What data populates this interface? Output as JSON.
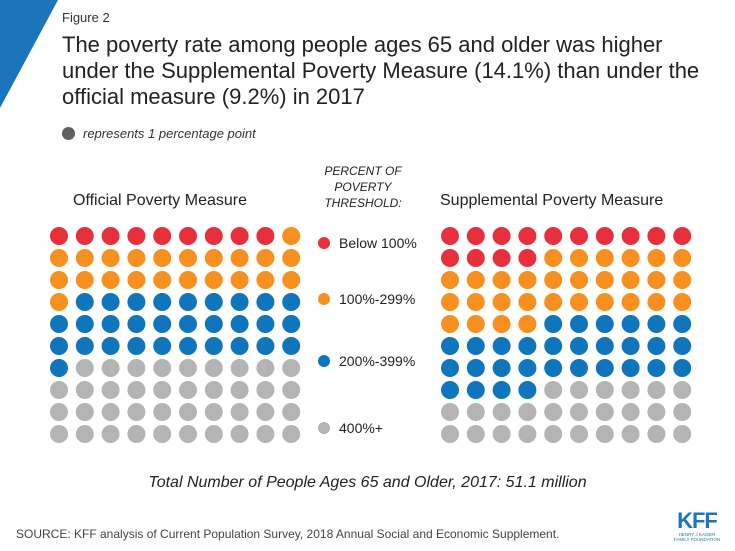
{
  "figure_label": "Figure 2",
  "title": "The poverty rate among people ages 65 and older was higher under the Supplemental Poverty Measure (14.1%) than under the official measure (9.2%) in 2017",
  "legend_note": "represents 1 percentage point",
  "middle_header": [
    "PERCENT OF",
    "POVERTY",
    "THRESHOLD:"
  ],
  "total_note": "Total Number of People Ages 65 and Older, 2017: 51.1 million",
  "source": "SOURCE: KFF analysis of Current Population Survey, 2018 Annual Social and Economic Supplement.",
  "logo": {
    "text": "KFF",
    "sub": [
      "HENRY J KAISER",
      "FAMILY FOUNDATION"
    ]
  },
  "colors": {
    "below_100": "#e8303d",
    "100_299": "#f7901e",
    "200_399": "#0f75bc",
    "400_plus": "#b4b4b4",
    "corner": "#1b75bb",
    "legend_dot": "#606060"
  },
  "chart_data": {
    "type": "waffle",
    "unit": "1 dot = 1 percentage point",
    "categories": [
      "Below 100%",
      "100%-299%",
      "200%-399%",
      "400%+"
    ],
    "series": [
      {
        "name": "Official Poverty Measure",
        "values": [
          9,
          22,
          30,
          39
        ]
      },
      {
        "name": "Supplemental Poverty Measure",
        "values": [
          14,
          30,
          30,
          26
        ]
      }
    ]
  }
}
